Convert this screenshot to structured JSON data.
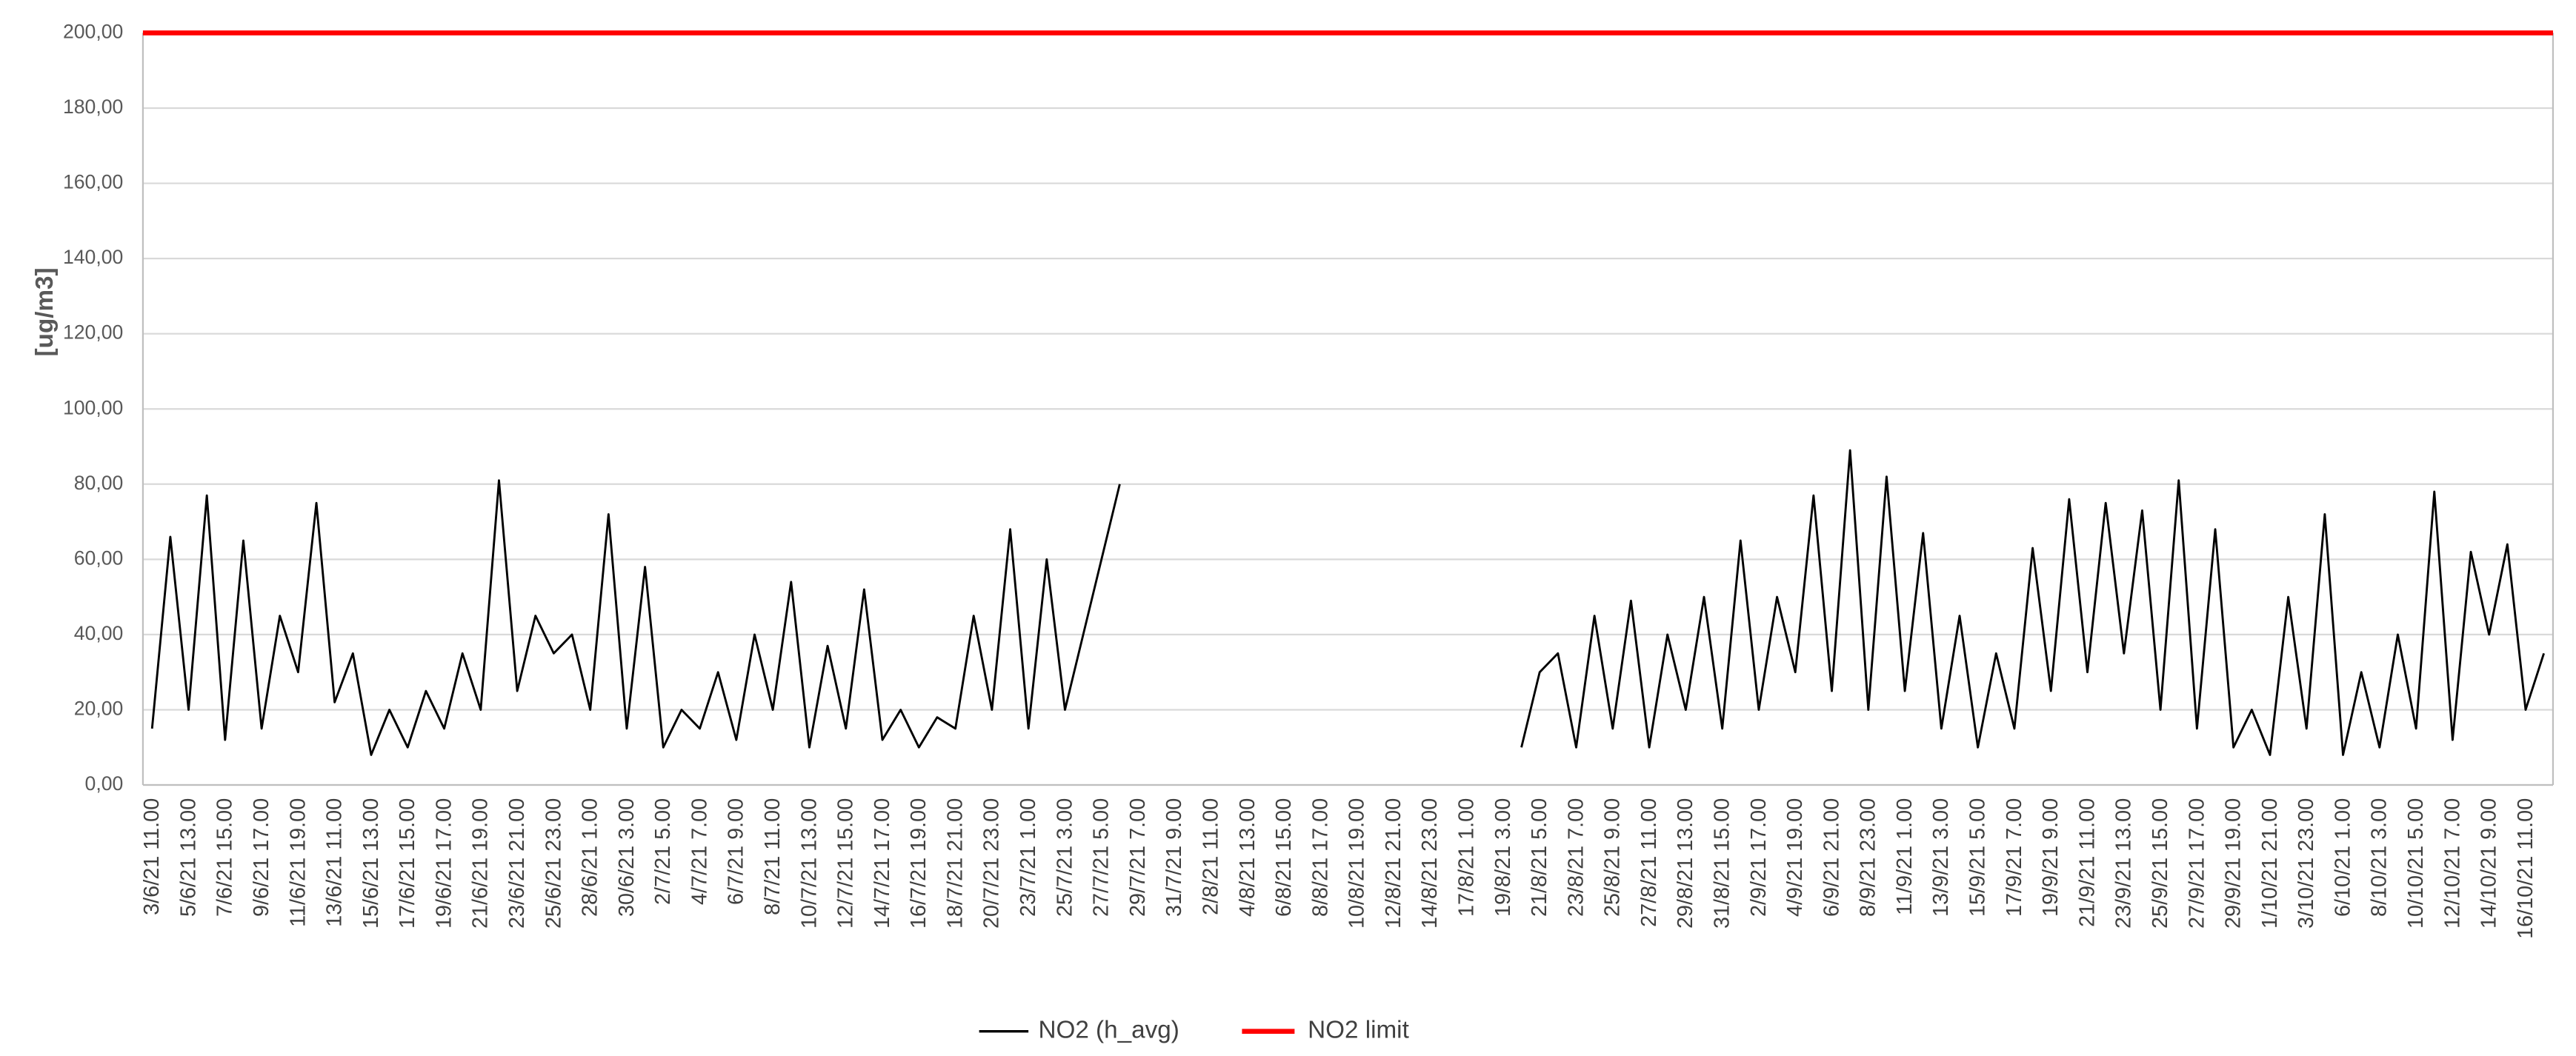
{
  "chart_data": {
    "type": "line",
    "y_label": "[ug/m3]",
    "ylim": [
      0,
      200
    ],
    "yticks": [
      {
        "value": 0,
        "label": "0,00"
      },
      {
        "value": 20,
        "label": "20,00"
      },
      {
        "value": 40,
        "label": "40,00"
      },
      {
        "value": 60,
        "label": "60,00"
      },
      {
        "value": 80,
        "label": "80,00"
      },
      {
        "value": 100,
        "label": "100,00"
      },
      {
        "value": 120,
        "label": "120,00"
      },
      {
        "value": 140,
        "label": "140,00"
      },
      {
        "value": 160,
        "label": "160,00"
      },
      {
        "value": 180,
        "label": "180,00"
      },
      {
        "value": 200,
        "label": "200,00"
      }
    ],
    "grid": true,
    "categories": [
      "3/6/21 11.00",
      null,
      "5/6/21 13.00",
      null,
      "7/6/21 15.00",
      null,
      "9/6/21 17.00",
      null,
      "11/6/21 19.00",
      null,
      "13/6/21 11.00",
      null,
      "15/6/21 13.00",
      null,
      "17/6/21 15.00",
      null,
      "19/6/21 17.00",
      null,
      "21/6/21 19.00",
      null,
      "23/6/21 21.00",
      null,
      "25/6/21 23.00",
      null,
      "28/6/21 1.00",
      null,
      "30/6/21 3.00",
      null,
      "2/7/21 5.00",
      null,
      "4/7/21 7.00",
      null,
      "6/7/21 9.00",
      null,
      "8/7/21 11.00",
      null,
      "10/7/21 13.00",
      null,
      "12/7/21 15.00",
      null,
      "14/7/21 17.00",
      null,
      "16/7/21 19.00",
      null,
      "18/7/21 21.00",
      null,
      "20/7/21 23.00",
      null,
      "23/7/21 1.00",
      null,
      "25/7/21 3.00",
      null,
      "27/7/21 5.00",
      null,
      "29/7/21 7.00",
      null,
      "31/7/21 9.00",
      null,
      "2/8/21 11.00",
      null,
      "4/8/21 13.00",
      null,
      "6/8/21 15.00",
      null,
      "8/8/21 17.00",
      null,
      "10/8/21 19.00",
      null,
      "12/8/21 21.00",
      null,
      "14/8/21 23.00",
      null,
      "17/8/21 1.00",
      null,
      "19/8/21 3.00",
      null,
      "21/8/21 5.00",
      null,
      "23/8/21 7.00",
      null,
      "25/8/21 9.00",
      null,
      "27/8/21 11.00",
      null,
      "29/8/21 13.00",
      null,
      "31/8/21 15.00",
      null,
      "2/9/21 17.00",
      null,
      "4/9/21 19.00",
      null,
      "6/9/21 21.00",
      null,
      "8/9/21 23.00",
      null,
      "11/9/21 1.00",
      null,
      "13/9/21 3.00",
      null,
      "15/9/21 5.00",
      null,
      "17/9/21 7.00",
      null,
      "19/9/21 9.00",
      null,
      "21/9/21 11.00",
      null,
      "23/9/21 13.00",
      null,
      "25/9/21 15.00",
      null,
      "27/9/21 17.00",
      null,
      "29/9/21 19.00",
      null,
      "1/10/21 21.00",
      null,
      "3/10/21 23.00",
      null,
      "6/10/21 1.00",
      null,
      "8/10/21 3.00",
      null,
      "10/10/21 5.00",
      null,
      "12/10/21 7.00",
      null,
      "14/10/21 9.00",
      null,
      "16/10/21 11.00",
      null
    ],
    "series": [
      {
        "name": "NO2 (h_avg)",
        "color": "#000000",
        "values": [
          15,
          66,
          20,
          77,
          12,
          65,
          15,
          45,
          30,
          75,
          22,
          35,
          8,
          20,
          10,
          25,
          15,
          35,
          20,
          81,
          25,
          45,
          35,
          40,
          20,
          72,
          15,
          58,
          10,
          20,
          15,
          30,
          12,
          40,
          20,
          54,
          10,
          37,
          15,
          52,
          12,
          20,
          10,
          18,
          15,
          45,
          20,
          68,
          15,
          60,
          20,
          40,
          60,
          80,
          null,
          null,
          null,
          null,
          null,
          null,
          null,
          null,
          null,
          null,
          null,
          null,
          null,
          null,
          null,
          null,
          null,
          null,
          null,
          null,
          null,
          10,
          30,
          35,
          10,
          45,
          15,
          49,
          10,
          40,
          20,
          50,
          15,
          65,
          20,
          50,
          30,
          77,
          25,
          89,
          20,
          82,
          25,
          67,
          15,
          45,
          10,
          35,
          15,
          63,
          25,
          76,
          30,
          75,
          35,
          73,
          20,
          81,
          15,
          68,
          10,
          20,
          8,
          50,
          15,
          72,
          8,
          30,
          10,
          40,
          15,
          78,
          12,
          62,
          40,
          64,
          20,
          35
        ]
      }
    ],
    "limit": {
      "name": "NO2 limit",
      "color": "#ff0000",
      "value": 200
    }
  }
}
